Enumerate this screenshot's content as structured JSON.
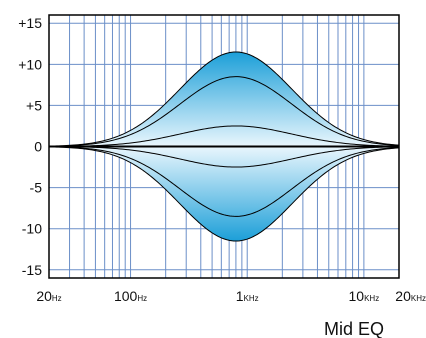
{
  "chart_data": {
    "type": "line",
    "caption": "Mid EQ",
    "x_scale": "log",
    "xlim": [
      20,
      20000
    ],
    "ylim": [
      -16,
      16
    ],
    "grid": true,
    "x_ticks": [
      {
        "value": 20,
        "num": "20",
        "unit": "Hz"
      },
      {
        "value": 100,
        "num": "100",
        "unit": "Hz"
      },
      {
        "value": 1000,
        "num": "1",
        "unit": "KHz"
      },
      {
        "value": 10000,
        "num": "10",
        "unit": "KHz"
      },
      {
        "value": 20000,
        "num": "20",
        "unit": "KHz"
      }
    ],
    "y_ticks": [
      {
        "value": 15,
        "label": "+15"
      },
      {
        "value": 10,
        "label": "+10"
      },
      {
        "value": 5,
        "label": "+5"
      },
      {
        "value": 0,
        "label": "0"
      },
      {
        "value": -5,
        "label": "-5"
      },
      {
        "value": -10,
        "label": "-10"
      },
      {
        "value": -15,
        "label": "-15"
      }
    ],
    "center_frequency_hz": 800,
    "series": [
      {
        "peak_db": 11.5
      },
      {
        "peak_db": 8.5
      },
      {
        "peak_db": 2.5
      },
      {
        "peak_db": -2.5
      },
      {
        "peak_db": -8.5
      },
      {
        "peak_db": -11.5
      }
    ],
    "colors": {
      "grid": "#6b8fc8",
      "frame": "#000000",
      "curve": "#000000",
      "fill_edge": "#e9f6fd",
      "fill_center": "#1c9fd8"
    }
  }
}
